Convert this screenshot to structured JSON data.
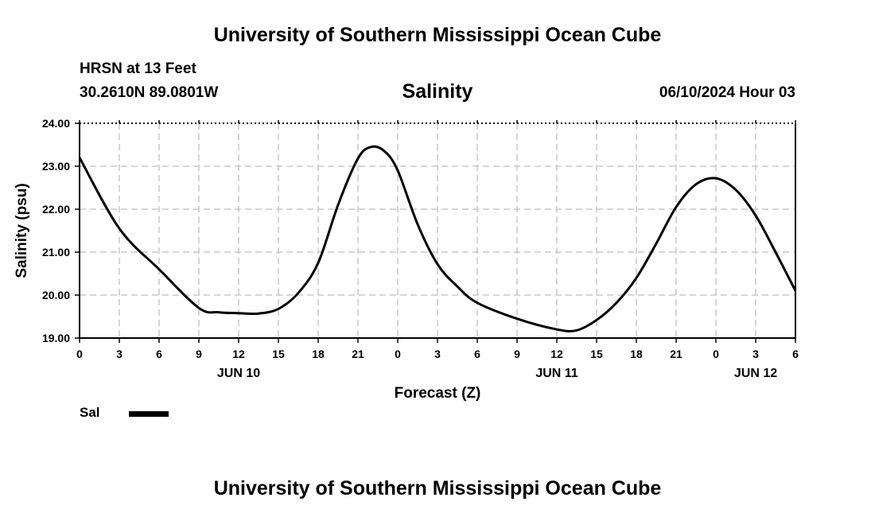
{
  "page": {
    "title_top": "University of Southern Mississippi Ocean Cube",
    "title_bottom": "University of Southern Mississippi Ocean Cube"
  },
  "header": {
    "station": "HRSN at 13 Feet",
    "location": "30.2610N  89.0801W",
    "chart_title": "Salinity",
    "datetime": "06/10/2024 Hour 03"
  },
  "legend": {
    "label": "Sal"
  },
  "colors": {
    "line": "#000000",
    "grid": "#c8c8c8",
    "background": "#ffffff"
  },
  "chart_data": {
    "type": "line",
    "title": "Salinity",
    "xlabel": "Forecast (Z)",
    "ylabel": "Salinity (psu)",
    "ylim": [
      19.0,
      24.0
    ],
    "y_ticks": [
      "19.00",
      "20.00",
      "21.00",
      "22.00",
      "23.00",
      "24.00"
    ],
    "x_range_hours": [
      0,
      54
    ],
    "x_tick_labels": [
      "0",
      "3",
      "6",
      "9",
      "12",
      "15",
      "18",
      "21",
      "0",
      "3",
      "6",
      "9",
      "12",
      "15",
      "18",
      "21",
      "0",
      "3",
      "6"
    ],
    "date_labels": [
      {
        "label": "JUN 10",
        "hour": 12
      },
      {
        "label": "JUN 11",
        "hour": 36
      },
      {
        "label": "JUN 12",
        "hour": 51
      }
    ],
    "grid": true,
    "legend_position": "bottom-left",
    "series": [
      {
        "name": "Sal",
        "x_hours": [
          0,
          3,
          6,
          9,
          10.5,
          12,
          13.5,
          15,
          16.5,
          18,
          19.5,
          21,
          22,
          23,
          24,
          25.5,
          27,
          28.5,
          30,
          33,
          36,
          37.5,
          39,
          40.5,
          42,
          43.5,
          45,
          46.5,
          48,
          49.5,
          51,
          52.5,
          54
        ],
        "values": [
          23.2,
          21.55,
          20.6,
          19.7,
          19.6,
          19.58,
          19.57,
          19.68,
          20.05,
          20.75,
          22.1,
          23.18,
          23.45,
          23.35,
          22.9,
          21.65,
          20.72,
          20.2,
          19.82,
          19.45,
          19.2,
          19.18,
          19.42,
          19.82,
          20.4,
          21.2,
          22.05,
          22.58,
          22.72,
          22.45,
          21.85,
          21.0,
          20.1
        ]
      }
    ]
  }
}
